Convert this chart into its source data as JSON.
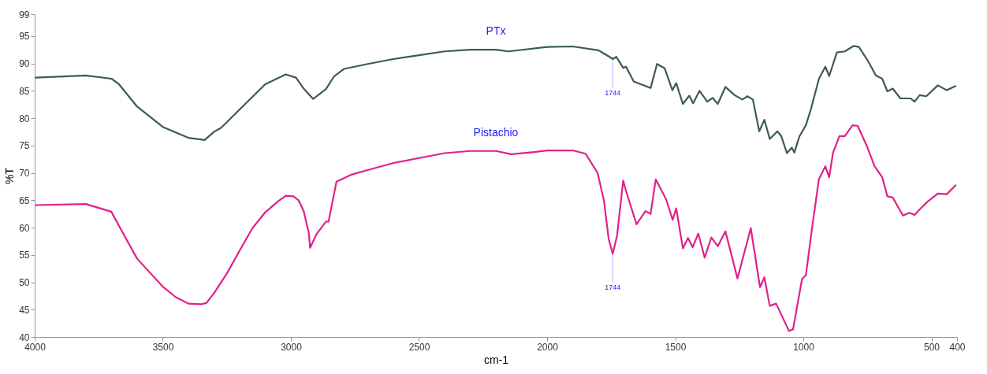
{
  "chart_data": {
    "type": "line",
    "xlabel": "cm-1",
    "ylabel": "%T",
    "xlim": [
      4000,
      400
    ],
    "xticks": [
      4000,
      3500,
      3000,
      2500,
      2000,
      1500,
      1000,
      500,
      400
    ],
    "ylim": [
      40,
      99
    ],
    "yticks": [
      40,
      45,
      50,
      55,
      60,
      65,
      70,
      75,
      80,
      85,
      90,
      95,
      99
    ],
    "grid": false,
    "legend": false,
    "marker": "none",
    "line_style": "solid",
    "annotations": [
      {
        "text": "1744",
        "x": 1744,
        "y": 90.8
      },
      {
        "text": "1744",
        "x": 1744,
        "y": 55.2
      }
    ],
    "series": [
      {
        "name": "PTx",
        "color": "#3d5a58",
        "x": [
          4000,
          3800,
          3700,
          3671,
          3600,
          3500,
          3400,
          3350,
          3337,
          3300,
          3273,
          3200,
          3100,
          3020,
          2980,
          2950,
          2913,
          2863,
          2832,
          2792,
          2700,
          2600,
          2500,
          2400,
          2300,
          2200,
          2150,
          2000,
          1900,
          1800,
          1760,
          1744,
          1730,
          1703,
          1692,
          1662,
          1596,
          1571,
          1541,
          1511,
          1496,
          1470,
          1445,
          1430,
          1405,
          1375,
          1354,
          1334,
          1304,
          1268,
          1238,
          1218,
          1197,
          1172,
          1152,
          1131,
          1101,
          1086,
          1064,
          1045,
          1035,
          1015,
          990,
          970,
          939,
          914,
          899,
          869,
          838,
          803,
          783,
          747,
          717,
          692,
          672,
          651,
          621,
          581,
          566,
          546,
          520,
          475,
          440,
          404
        ],
        "values": [
          87.4,
          87.8,
          87.2,
          86.2,
          82.1,
          78.4,
          76.4,
          76.1,
          76.0,
          77.5,
          78.2,
          81.6,
          86.2,
          88.0,
          87.4,
          85.4,
          83.5,
          85.3,
          87.6,
          89.0,
          89.9,
          90.8,
          91.5,
          92.2,
          92.5,
          92.5,
          92.2,
          93.0,
          93.1,
          92.4,
          91.3,
          90.8,
          91.2,
          89.2,
          89.4,
          86.7,
          85.5,
          89.9,
          89.1,
          85.1,
          86.4,
          82.6,
          84.1,
          82.7,
          85.0,
          83.0,
          83.7,
          82.6,
          85.7,
          84.2,
          83.4,
          84.0,
          83.4,
          77.6,
          79.7,
          76.2,
          77.6,
          76.7,
          73.6,
          74.6,
          73.7,
          76.7,
          78.7,
          81.7,
          87.2,
          89.4,
          87.7,
          92.0,
          92.2,
          93.2,
          93.0,
          90.4,
          87.8,
          87.2,
          84.9,
          85.4,
          83.6,
          83.6,
          83.0,
          84.2,
          84.0,
          86.0,
          85.1,
          85.9
        ]
      },
      {
        "name": "Pistachio",
        "color": "#e0218a",
        "x": [
          4000,
          3800,
          3701,
          3651,
          3600,
          3500,
          3450,
          3400,
          3350,
          3330,
          3300,
          3250,
          3200,
          3150,
          3100,
          3050,
          3020,
          2990,
          2970,
          2950,
          2930,
          2925,
          2900,
          2863,
          2853,
          2822,
          2762,
          2700,
          2600,
          2500,
          2400,
          2300,
          2200,
          2140,
          2050,
          2000,
          1900,
          1850,
          1803,
          1778,
          1760,
          1744,
          1727,
          1703,
          1692,
          1651,
          1616,
          1596,
          1576,
          1535,
          1510,
          1496,
          1470,
          1450,
          1432,
          1410,
          1385,
          1359,
          1334,
          1304,
          1257,
          1205,
          1169,
          1152,
          1131,
          1106,
          1056,
          1040,
          1005,
          990,
          965,
          939,
          914,
          899,
          884,
          859,
          838,
          808,
          788,
          752,
          722,
          692,
          672,
          651,
          611,
          586,
          566,
          546,
          516,
          475,
          440,
          404
        ],
        "values": [
          64.1,
          64.3,
          62.9,
          58.6,
          54.3,
          49.2,
          47.3,
          46.1,
          46.0,
          46.2,
          48.0,
          51.6,
          55.8,
          59.9,
          62.8,
          64.8,
          65.8,
          65.7,
          65.0,
          63.0,
          59.0,
          56.3,
          58.8,
          61.1,
          61.1,
          68.4,
          69.7,
          70.5,
          71.8,
          72.7,
          73.6,
          74.0,
          74.0,
          73.4,
          73.8,
          74.1,
          74.1,
          73.5,
          70.0,
          64.9,
          58.0,
          55.2,
          58.5,
          68.6,
          66.7,
          60.6,
          63.0,
          62.5,
          68.8,
          65.1,
          61.4,
          63.5,
          56.2,
          58.1,
          56.4,
          58.9,
          54.5,
          58.2,
          56.6,
          59.3,
          50.7,
          59.9,
          49.1,
          50.9,
          45.7,
          46.1,
          41.1,
          41.4,
          50.6,
          51.3,
          60.2,
          68.9,
          71.2,
          69.2,
          73.7,
          76.7,
          76.7,
          78.7,
          78.6,
          74.9,
          71.2,
          69.2,
          65.7,
          65.5,
          62.2,
          62.7,
          62.3,
          63.3,
          64.7,
          66.2,
          66.1,
          67.8
        ]
      }
    ]
  }
}
